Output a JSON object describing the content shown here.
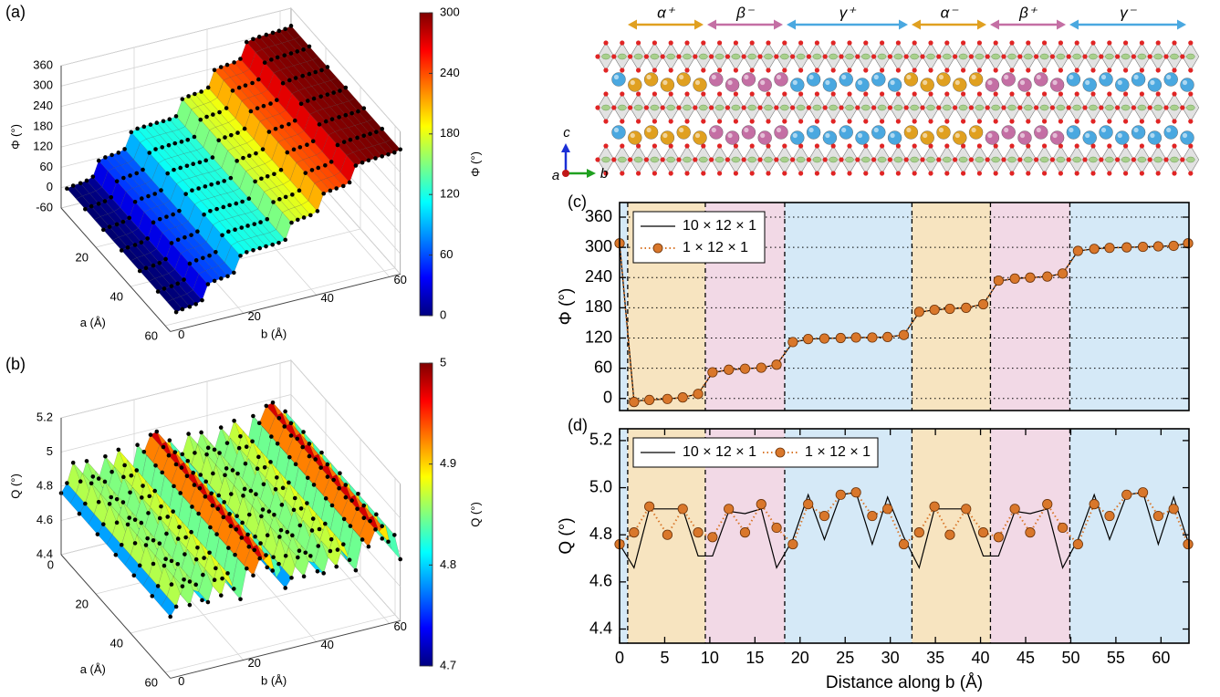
{
  "panel_labels": [
    "(a)",
    "(b)",
    "(c)",
    "(d)"
  ],
  "structure": {
    "domains": [
      {
        "label": "α⁺",
        "color": "#e0a020"
      },
      {
        "label": "β⁻",
        "color": "#c46fa4"
      },
      {
        "label": "γ⁺",
        "color": "#4aa8e0"
      },
      {
        "label": "α⁻",
        "color": "#e0a020"
      },
      {
        "label": "β⁺",
        "color": "#c46fa4"
      },
      {
        "label": "γ⁻",
        "color": "#4aa8e0"
      }
    ],
    "axes": [
      "c",
      "a",
      "b"
    ]
  },
  "chart_data": [
    {
      "type": "line",
      "ylabel": "Φ (°)",
      "xlim": [
        0,
        63.1
      ],
      "ylim": [
        -24,
        389
      ],
      "yticks": [
        0,
        60,
        120,
        180,
        240,
        300,
        360
      ],
      "grid": true,
      "legend": "upper left",
      "legend_ncol": 1,
      "bands": [
        {
          "x0": 0,
          "x1": 0.9,
          "color": "#d5e9f7"
        },
        {
          "x0": 0.9,
          "x1": 9.5,
          "color": "#f7e4c0"
        },
        {
          "x0": 9.5,
          "x1": 18.3,
          "color": "#f2d9e6"
        },
        {
          "x0": 18.3,
          "x1": 32.4,
          "color": "#d5e9f7"
        },
        {
          "x0": 32.4,
          "x1": 41.1,
          "color": "#f7e4c0"
        },
        {
          "x0": 41.1,
          "x1": 49.9,
          "color": "#f2d9e6"
        },
        {
          "x0": 49.9,
          "x1": 63.1,
          "color": "#d5e9f7"
        }
      ],
      "x": [
        0,
        1.6,
        3.3,
        5.3,
        7.0,
        8.7,
        10.3,
        12.1,
        13.9,
        15.7,
        17.4,
        19.2,
        20.9,
        22.7,
        24.5,
        26.2,
        28.0,
        29.7,
        31.5,
        33.2,
        34.9,
        36.6,
        38.4,
        40.3,
        42.0,
        43.8,
        45.5,
        47.4,
        49.1,
        50.8,
        52.6,
        54.3,
        56.2,
        58.0,
        59.7,
        61.4,
        63.0
      ],
      "series": [
        {
          "name": "10 × 12 × 1",
          "color": "#000000",
          "line_style": "solid",
          "values": [
            308,
            -5,
            -3,
            -1,
            2,
            9,
            51,
            57,
            59,
            61,
            67,
            111,
            118,
            119,
            120,
            121,
            121,
            122,
            126,
            171,
            176,
            178,
            180,
            187,
            233,
            238,
            240,
            242,
            248,
            293,
            297,
            299,
            300,
            301,
            302,
            303,
            308
          ]
        },
        {
          "name": "1 × 12 × 1",
          "color": "#d9772b",
          "line_style": "dotted",
          "marker": "circle",
          "values": [
            308,
            -7,
            -3,
            -1,
            2,
            9,
            52,
            57,
            59,
            61,
            67,
            112,
            118,
            119,
            120,
            121,
            121,
            122,
            126,
            172,
            176,
            178,
            180,
            187,
            234,
            238,
            240,
            242,
            248,
            293,
            297,
            299,
            300,
            301,
            302,
            303,
            308
          ]
        }
      ]
    },
    {
      "type": "line",
      "ylabel": "Q (°)",
      "xlabel": "Distance along b (Å)",
      "xlim": [
        0,
        63.1
      ],
      "ylim": [
        4.34,
        5.25
      ],
      "xticks": [
        0,
        5,
        10,
        15,
        20,
        25,
        30,
        35,
        40,
        45,
        50,
        55,
        60
      ],
      "yticks": [
        {
          "value": 4.4,
          "label": "4.4"
        },
        {
          "value": 4.6,
          "label": "4.6"
        },
        {
          "value": 4.8,
          "label": "4.8"
        },
        {
          "value": 5,
          "label": "5.0"
        },
        {
          "value": 5.2,
          "label": "5.2"
        }
      ],
      "grid": false,
      "legend": "upper left",
      "legend_ncol": 2,
      "bands": [
        {
          "x0": 0,
          "x1": 0.9,
          "color": "#d5e9f7"
        },
        {
          "x0": 0.9,
          "x1": 9.5,
          "color": "#f7e4c0"
        },
        {
          "x0": 9.5,
          "x1": 18.3,
          "color": "#f2d9e6"
        },
        {
          "x0": 18.3,
          "x1": 32.4,
          "color": "#d5e9f7"
        },
        {
          "x0": 32.4,
          "x1": 41.1,
          "color": "#f7e4c0"
        },
        {
          "x0": 41.1,
          "x1": 49.9,
          "color": "#f2d9e6"
        },
        {
          "x0": 49.9,
          "x1": 63.1,
          "color": "#d5e9f7"
        }
      ],
      "x": [
        0,
        1.6,
        3.3,
        5.3,
        7.0,
        8.7,
        10.3,
        12.1,
        13.9,
        15.7,
        17.4,
        19.2,
        20.9,
        22.7,
        24.5,
        26.2,
        28.0,
        29.7,
        31.5,
        33.2,
        34.9,
        36.6,
        38.4,
        40.3,
        42.0,
        43.8,
        45.5,
        47.4,
        49.1,
        50.8,
        52.6,
        54.3,
        56.2,
        58.0,
        59.7,
        61.4,
        63.0
      ],
      "series": [
        {
          "name": "10 × 12 × 1",
          "color": "#000000",
          "line_style": "solid",
          "values": [
            4.76,
            4.66,
            4.91,
            4.91,
            4.91,
            4.71,
            4.71,
            4.9,
            4.89,
            4.91,
            4.66,
            4.78,
            4.97,
            4.78,
            4.97,
            4.98,
            4.76,
            4.96,
            4.79,
            4.66,
            4.91,
            4.91,
            4.91,
            4.71,
            4.71,
            4.9,
            4.89,
            4.91,
            4.66,
            4.78,
            4.97,
            4.78,
            4.97,
            4.98,
            4.76,
            4.96,
            4.77
          ]
        },
        {
          "name": "1 × 12 × 1",
          "color": "#d9772b",
          "line_style": "dotted",
          "marker": "circle",
          "values": [
            4.76,
            4.81,
            4.92,
            4.8,
            4.91,
            4.81,
            4.79,
            4.91,
            4.81,
            4.93,
            4.83,
            4.76,
            4.93,
            4.88,
            4.97,
            4.98,
            4.88,
            4.91,
            4.76,
            4.81,
            4.92,
            4.8,
            4.91,
            4.81,
            4.79,
            4.91,
            4.81,
            4.93,
            4.83,
            4.76,
            4.93,
            4.88,
            4.97,
            4.98,
            4.88,
            4.91,
            4.76
          ]
        }
      ]
    },
    {
      "type": "surface",
      "zlabel": "Φ (°)",
      "xlabel": "a (Å)",
      "ylabel": "b (Å)",
      "xlim": [
        0,
        63
      ],
      "ylim": [
        0,
        63
      ],
      "zlim": [
        -60,
        360
      ],
      "xticks": [
        20,
        40,
        60
      ],
      "yticks": [
        0,
        20,
        40,
        60
      ],
      "zticks": [
        -60,
        0,
        60,
        120,
        180,
        240,
        300,
        360
      ],
      "colormap": "jet",
      "clim": [
        0,
        300
      ],
      "cticks": [
        0,
        60,
        120,
        180,
        240,
        300
      ],
      "clabel": "Φ (°)"
    },
    {
      "type": "surface",
      "zlabel": "Q (°)",
      "xlabel": "a (Å)",
      "ylabel": "b (Å)",
      "xlim": [
        0,
        63
      ],
      "ylim": [
        0,
        63
      ],
      "zlim": [
        4.4,
        5.2
      ],
      "xticks": [
        0,
        20,
        40,
        60
      ],
      "yticks": [
        0,
        20,
        40,
        60
      ],
      "zticks": [
        4.4,
        4.6,
        4.8,
        5,
        5.2
      ],
      "colormap": "jet",
      "clim": [
        4.7,
        5
      ],
      "cticks": [
        4.7,
        4.8,
        4.9,
        5
      ],
      "clabel": "Q (°)"
    }
  ]
}
